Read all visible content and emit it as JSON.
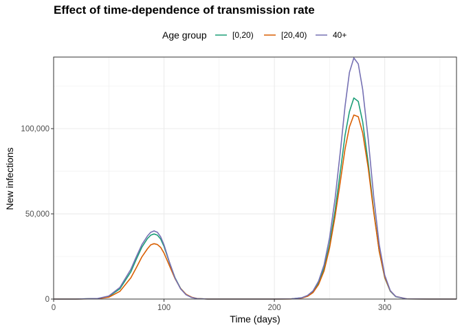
{
  "chart_data": {
    "type": "line",
    "title": "Effect of time-dependence of transmission rate",
    "xlabel": "Time (days)",
    "ylabel": "New infections",
    "xlim": [
      0,
      365
    ],
    "ylim": [
      0,
      142000
    ],
    "x_ticks": [
      0,
      100,
      200,
      300
    ],
    "x_tick_labels": [
      "0",
      "100",
      "200",
      "300"
    ],
    "y_ticks": [
      0,
      50000,
      100000
    ],
    "y_tick_labels": [
      "0",
      "50,000",
      "100,000"
    ],
    "grid": true,
    "legend": {
      "title": "Age group",
      "position": "top",
      "entries": [
        "[0,20)",
        "[20,40)",
        "40+"
      ]
    },
    "x": [
      0,
      20,
      40,
      50,
      60,
      70,
      75,
      80,
      85,
      88,
      91,
      94,
      97,
      100,
      105,
      110,
      115,
      120,
      125,
      130,
      140,
      160,
      180,
      200,
      215,
      225,
      230,
      235,
      240,
      245,
      250,
      255,
      260,
      264,
      268,
      272,
      276,
      280,
      285,
      290,
      295,
      300,
      305,
      310,
      320,
      340,
      365
    ],
    "series": [
      {
        "name": "[0,20)",
        "color": "#1b9e77",
        "values": [
          0,
          0,
          300,
          1500,
          6000,
          16000,
          23500,
          30500,
          35500,
          37500,
          38200,
          37500,
          35200,
          30900,
          21300,
          12500,
          6300,
          2700,
          1000,
          300,
          0,
          0,
          0,
          0,
          100,
          800,
          2000,
          4500,
          9500,
          18000,
          32000,
          52000,
          76000,
          96000,
          110000,
          118000,
          116000,
          104000,
          80000,
          52000,
          28000,
          12500,
          4600,
          1400,
          100,
          0,
          0
        ]
      },
      {
        "name": "[20,40)",
        "color": "#d95f02",
        "values": [
          0,
          0,
          200,
          1100,
          4500,
          12500,
          18500,
          24800,
          29500,
          31800,
          32500,
          32000,
          30300,
          27000,
          19500,
          12000,
          6200,
          2800,
          1100,
          300,
          0,
          0,
          0,
          0,
          80,
          600,
          1600,
          3800,
          8500,
          16500,
          30000,
          48500,
          70000,
          88000,
          101000,
          108000,
          107000,
          97500,
          77000,
          51000,
          28000,
          12800,
          4800,
          1500,
          100,
          0,
          0
        ]
      },
      {
        "name": "40+",
        "color": "#7570b3",
        "values": [
          0,
          0,
          350,
          1800,
          6800,
          17500,
          25000,
          32000,
          37000,
          39200,
          40000,
          39200,
          36500,
          31800,
          21500,
          12300,
          6000,
          2500,
          900,
          250,
          0,
          0,
          0,
          0,
          100,
          800,
          2100,
          4800,
          10500,
          20000,
          36000,
          59000,
          88000,
          113000,
          133000,
          141500,
          138000,
          123000,
          94000,
          60000,
          32000,
          14000,
          5000,
          1500,
          100,
          0,
          0
        ]
      }
    ]
  }
}
